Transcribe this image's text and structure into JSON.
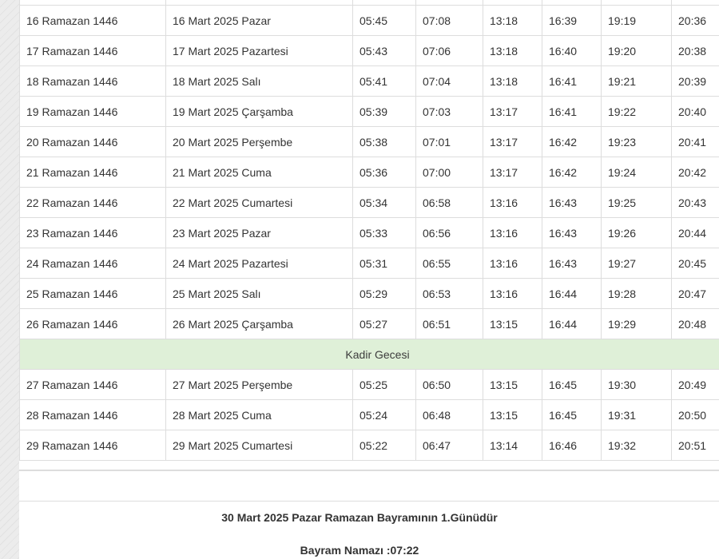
{
  "rows_before": [
    [
      "16 Ramazan 1446",
      "16 Mart 2025 Pazar",
      "05:45",
      "07:08",
      "13:18",
      "16:39",
      "19:19",
      "20:36"
    ],
    [
      "17 Ramazan 1446",
      "17 Mart 2025 Pazartesi",
      "05:43",
      "07:06",
      "13:18",
      "16:40",
      "19:20",
      "20:38"
    ],
    [
      "18 Ramazan 1446",
      "18 Mart 2025 Salı",
      "05:41",
      "07:04",
      "13:18",
      "16:41",
      "19:21",
      "20:39"
    ],
    [
      "19 Ramazan 1446",
      "19 Mart 2025 Çarşamba",
      "05:39",
      "07:03",
      "13:17",
      "16:41",
      "19:22",
      "20:40"
    ],
    [
      "20 Ramazan 1446",
      "20 Mart 2025 Perşembe",
      "05:38",
      "07:01",
      "13:17",
      "16:42",
      "19:23",
      "20:41"
    ],
    [
      "21 Ramazan 1446",
      "21 Mart 2025 Cuma",
      "05:36",
      "07:00",
      "13:17",
      "16:42",
      "19:24",
      "20:42"
    ],
    [
      "22 Ramazan 1446",
      "22 Mart 2025 Cumartesi",
      "05:34",
      "06:58",
      "13:16",
      "16:43",
      "19:25",
      "20:43"
    ],
    [
      "23 Ramazan 1446",
      "23 Mart 2025 Pazar",
      "05:33",
      "06:56",
      "13:16",
      "16:43",
      "19:26",
      "20:44"
    ],
    [
      "24 Ramazan 1446",
      "24 Mart 2025 Pazartesi",
      "05:31",
      "06:55",
      "13:16",
      "16:43",
      "19:27",
      "20:45"
    ],
    [
      "25 Ramazan 1446",
      "25 Mart 2025 Salı",
      "05:29",
      "06:53",
      "13:16",
      "16:44",
      "19:28",
      "20:47"
    ],
    [
      "26 Ramazan 1446",
      "26 Mart 2025 Çarşamba",
      "05:27",
      "06:51",
      "13:15",
      "16:44",
      "19:29",
      "20:48"
    ]
  ],
  "note": "Kadir Gecesi",
  "rows_after": [
    [
      "27 Ramazan 1446",
      "27 Mart 2025 Perşembe",
      "05:25",
      "06:50",
      "13:15",
      "16:45",
      "19:30",
      "20:49"
    ],
    [
      "28 Ramazan 1446",
      "28 Mart 2025 Cuma",
      "05:24",
      "06:48",
      "13:15",
      "16:45",
      "19:31",
      "20:50"
    ],
    [
      "29 Ramazan 1446",
      "29 Mart 2025 Cumartesi",
      "05:22",
      "06:47",
      "13:14",
      "16:46",
      "19:32",
      "20:51"
    ]
  ],
  "footer": {
    "bayram": "30 Mart 2025 Pazar Ramazan Bayramının 1.Günüdür",
    "namaz": "Bayram Namazı :07:22"
  },
  "colors": {
    "highlight": "#dff0d8",
    "border": "#dddddd"
  }
}
